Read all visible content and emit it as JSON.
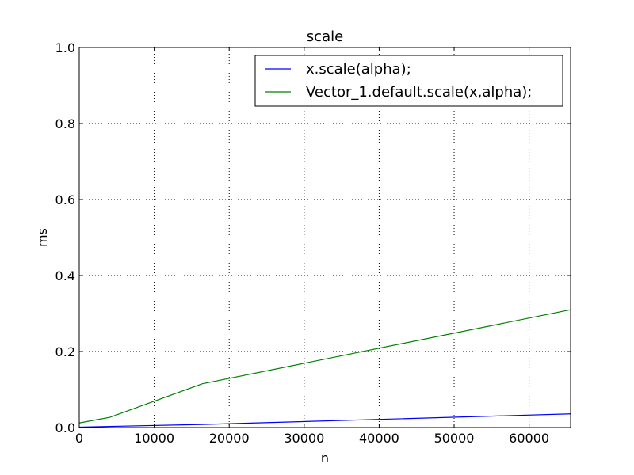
{
  "chart_data": {
    "type": "line",
    "title": "scale",
    "xlabel": "n",
    "ylabel": "ms",
    "xlim": [
      0,
      65536
    ],
    "ylim": [
      0,
      1.0
    ],
    "xticks": [
      0,
      10000,
      20000,
      30000,
      40000,
      50000,
      60000
    ],
    "xtick_labels": [
      "0",
      "10000",
      "20000",
      "30000",
      "40000",
      "50000",
      "60000"
    ],
    "yticks": [
      0,
      0.2,
      0.4,
      0.6,
      0.8,
      1.0
    ],
    "ytick_labels": [
      "0.0",
      "0.2",
      "0.4",
      "0.6",
      "0.8",
      "1.0"
    ],
    "grid": true,
    "legend_position": "top-right",
    "series": [
      {
        "name": "x.scale(alpha);",
        "color": "#0000ff",
        "x": [
          0,
          4096,
          16384,
          65536
        ],
        "y": [
          0.001,
          0.003,
          0.008,
          0.036
        ]
      },
      {
        "name": "Vector_1.default.scale(x,alpha);",
        "color": "#008000",
        "x": [
          0,
          4096,
          16384,
          65536
        ],
        "y": [
          0.012,
          0.027,
          0.115,
          0.31
        ]
      }
    ]
  }
}
